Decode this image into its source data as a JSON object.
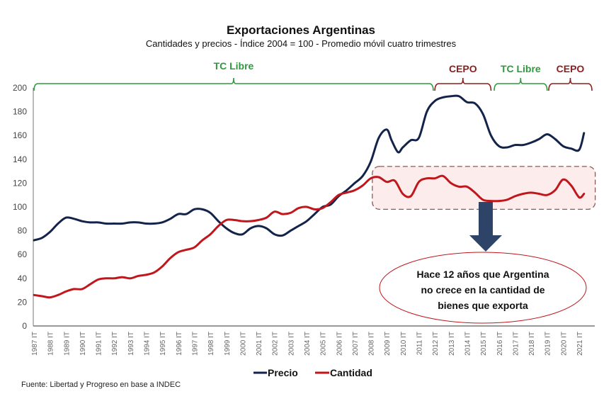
{
  "chart_data": {
    "type": "line",
    "title": "Exportaciones Argentinas",
    "subtitle": "Cantidades y precios - Índice 2004 = 100 - Promedio móvil cuatro trimestres",
    "xlabel": "",
    "ylabel": "",
    "ylim": [
      0,
      200
    ],
    "yticks": [
      0,
      20,
      40,
      60,
      80,
      100,
      120,
      140,
      160,
      180,
      200
    ],
    "xlim": [
      1987,
      2021.5
    ],
    "categories": [
      "1987 IT",
      "1988 IT",
      "1989 IT",
      "1990 IT",
      "1991 IT",
      "1992 IT",
      "1993 IT",
      "1994 IT",
      "1995 IT",
      "1996 IT",
      "1997 IT",
      "1998 IT",
      "1999 IT",
      "2000 IT",
      "2001 IT",
      "2002 IT",
      "2003 IT",
      "2004 IT",
      "2005 IT",
      "2006 IT",
      "2007 IT",
      "2008 IT",
      "2009 IT",
      "2010 IT",
      "2011 IT",
      "2012 IT",
      "2013 IT",
      "2014 IT",
      "2015 IT",
      "2016 IT",
      "2017 IT",
      "2018 IT",
      "2019 IT",
      "2020 IT",
      "2021 IT"
    ],
    "grid": false,
    "legend_position": "bottom-center",
    "series": [
      {
        "name": "Precio",
        "color": "#14234a",
        "x": [
          1987,
          1987.5,
          1988,
          1988.5,
          1989,
          1989.5,
          1990,
          1990.5,
          1991,
          1991.5,
          1992,
          1992.5,
          1993,
          1993.5,
          1994,
          1994.5,
          1995,
          1995.5,
          1996,
          1996.5,
          1997,
          1997.5,
          1998,
          1998.5,
          1999,
          1999.5,
          2000,
          2000.5,
          2001,
          2001.5,
          2002,
          2002.5,
          2003,
          2003.5,
          2004,
          2004.5,
          2005,
          2005.5,
          2006,
          2006.5,
          2007,
          2007.5,
          2008,
          2008.5,
          2009,
          2009.3,
          2009.7,
          2010,
          2010.5,
          2011,
          2011.5,
          2012,
          2012.5,
          2013,
          2013.5,
          2014,
          2014.5,
          2015,
          2015.5,
          2016,
          2016.5,
          2017,
          2017.5,
          2018,
          2018.5,
          2019,
          2019.5,
          2020,
          2020.5,
          2021,
          2021.3
        ],
        "values": [
          72,
          74,
          79,
          86,
          91,
          90,
          88,
          87,
          87,
          86,
          86,
          86,
          87,
          87,
          86,
          86,
          87,
          90,
          94,
          94,
          98,
          98,
          95,
          88,
          82,
          78,
          77,
          82,
          84,
          82,
          77,
          76,
          80,
          84,
          88,
          94,
          100,
          102,
          109,
          114,
          120,
          126,
          138,
          158,
          165,
          156,
          146,
          150,
          156,
          158,
          180,
          189,
          192,
          193,
          193,
          188,
          187,
          178,
          160,
          151,
          150,
          152,
          152,
          154,
          157,
          161,
          157,
          151,
          149,
          148,
          162
        ]
      },
      {
        "name": "Cantidad",
        "color": "#c0161c",
        "x": [
          1987,
          1987.5,
          1988,
          1988.5,
          1989,
          1989.5,
          1990,
          1990.5,
          1991,
          1991.5,
          1992,
          1992.5,
          1993,
          1993.5,
          1994,
          1994.5,
          1995,
          1995.5,
          1996,
          1996.5,
          1997,
          1997.5,
          1998,
          1998.5,
          1999,
          1999.5,
          2000,
          2000.5,
          2001,
          2001.5,
          2002,
          2002.5,
          2003,
          2003.5,
          2004,
          2004.5,
          2005,
          2005.5,
          2006,
          2006.5,
          2007,
          2007.5,
          2008,
          2008.5,
          2009,
          2009.5,
          2010,
          2010.5,
          2011,
          2011.5,
          2012,
          2012.5,
          2013,
          2013.5,
          2014,
          2014.5,
          2015,
          2015.5,
          2016,
          2016.5,
          2017,
          2017.5,
          2018,
          2018.5,
          2019,
          2019.5,
          2020,
          2020.5,
          2021,
          2021.3
        ],
        "values": [
          26,
          25,
          24,
          26,
          29,
          31,
          31,
          35,
          39,
          40,
          40,
          41,
          40,
          42,
          43,
          45,
          50,
          57,
          62,
          64,
          66,
          72,
          77,
          84,
          89,
          89,
          88,
          88,
          89,
          91,
          96,
          94,
          95,
          99,
          100,
          98,
          99,
          104,
          110,
          112,
          114,
          118,
          124,
          125,
          121,
          122,
          111,
          109,
          121,
          124,
          124,
          126,
          120,
          117,
          117,
          112,
          106,
          105,
          105,
          106,
          109,
          111,
          112,
          111,
          110,
          114,
          123,
          118,
          108,
          111
        ]
      }
    ],
    "annotations": {
      "periods": [
        {
          "label": "TC Libre",
          "from": 1987,
          "to": 2011.9,
          "color": "#2e9a3e"
        },
        {
          "label": "CEPO",
          "from": 2012.0,
          "to": 2015.5,
          "color": "#8c1e1e"
        },
        {
          "label": "TC Libre",
          "from": 2015.7,
          "to": 2019.0,
          "color": "#2e9a3e"
        },
        {
          "label": "CEPO",
          "from": 2019.1,
          "to": 2022.0,
          "color": "#8c1e1e"
        }
      ],
      "highlight_box": {
        "x_from": 2008.1,
        "x_to": 2022.0,
        "y_from": 98,
        "y_to": 134
      },
      "callout_text": [
        "Hace 12 años que Argentina",
        "no crece en la cantidad de",
        "bienes que exporta"
      ]
    }
  },
  "source": "Fuente: Libertad y Progreso en base a INDEC"
}
